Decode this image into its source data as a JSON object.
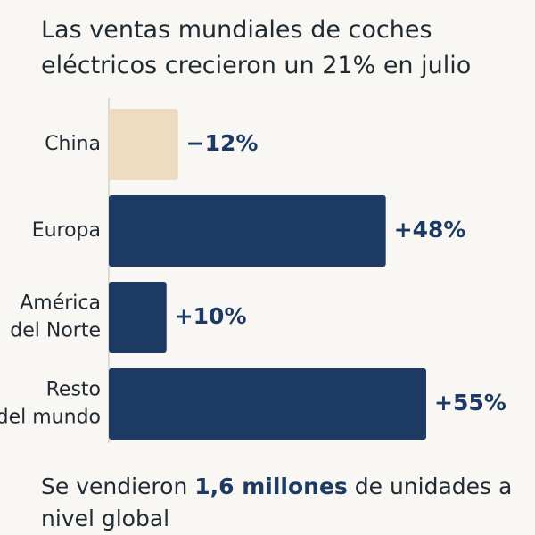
{
  "chart_data": {
    "type": "bar",
    "orientation": "horizontal",
    "title": "Las ventas mundiales de coches eléctricos crecieron un 21% en julio",
    "categories": [
      [
        "China"
      ],
      [
        "Europa"
      ],
      [
        "América",
        "del Norte"
      ],
      [
        "Resto",
        "del mundo"
      ]
    ],
    "values": [
      -12,
      48,
      10,
      55
    ],
    "value_labels": [
      "−12%",
      "+48%",
      "+10%",
      "+55%"
    ],
    "colors": [
      "#eedcc0",
      "#1c3a63",
      "#1c3a63",
      "#1c3a63"
    ],
    "label_color": "#1c3a63",
    "axis_color": "#d4d0c8"
  },
  "footer": {
    "prefix": "Se vendieron ",
    "highlight": "1,6 millones",
    "suffix": " de unidades a nivel global"
  }
}
